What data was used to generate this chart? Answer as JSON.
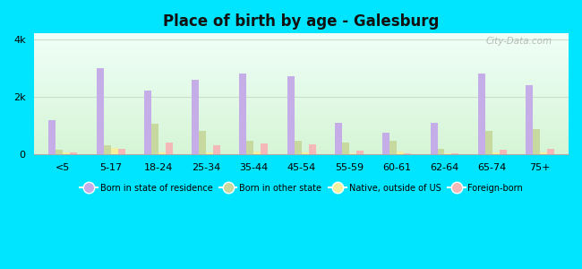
{
  "title": "Place of birth by age - Galesburg",
  "categories": [
    "<5",
    "5-17",
    "18-24",
    "25-34",
    "35-44",
    "45-54",
    "55-59",
    "60-61",
    "62-64",
    "65-74",
    "75+"
  ],
  "series": {
    "born_in_state": [
      1200,
      3000,
      2200,
      2600,
      2800,
      2700,
      1100,
      750,
      1100,
      2800,
      2400
    ],
    "born_other_state": [
      170,
      310,
      1050,
      800,
      480,
      470,
      420,
      480,
      180,
      820,
      880
    ],
    "native_outside_us": [
      50,
      220,
      50,
      70,
      90,
      80,
      40,
      110,
      40,
      70,
      70
    ],
    "foreign_born": [
      70,
      200,
      400,
      300,
      380,
      330,
      130,
      40,
      40,
      170,
      190
    ]
  },
  "colors": {
    "born_in_state": "#c5aee8",
    "born_other_state": "#c8d9a0",
    "native_outside_us": "#f5f0a0",
    "foreign_born": "#f4b8b8"
  },
  "ylim": [
    0,
    4200
  ],
  "ytick_labels": [
    "0",
    "2k",
    "4k"
  ],
  "ytick_values": [
    0,
    2000,
    4000
  ],
  "bg_top": "#ffffff",
  "bg_bottom": "#c8eec8",
  "figure_background": "#00e5ff",
  "watermark": "City-Data.com",
  "legend_labels": [
    "Born in state of residence",
    "Born in other state",
    "Native, outside of US",
    "Foreign-born"
  ],
  "bar_width": 0.15,
  "grid_color": "#ccddcc"
}
